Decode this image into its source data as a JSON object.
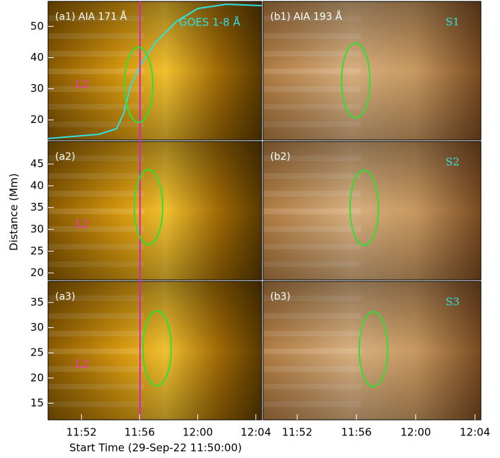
{
  "figure": {
    "y_label": "Distance (Mm)",
    "x_label": "Start Time (29-Sep-22 11:50:00)"
  },
  "chart_data": [
    {
      "type": "image",
      "title": "(a1) AIA 171 Å",
      "annotation": "GOES 1-8 Å",
      "region": "L2",
      "palette": "gold",
      "ylim": [
        13.6,
        58
      ],
      "yticks": [
        20,
        30,
        40,
        50
      ]
    },
    {
      "type": "image",
      "title": "(b1) AIA 193 Å",
      "region": "S1",
      "palette": "brown"
    },
    {
      "type": "image",
      "title": "(a2)",
      "region": "L2",
      "palette": "gold",
      "ylim": [
        18.4,
        50.2
      ],
      "yticks": [
        20,
        25,
        30,
        35,
        40,
        45
      ]
    },
    {
      "type": "image",
      "title": "(b2)",
      "region": "S2",
      "palette": "brown"
    },
    {
      "type": "image",
      "title": "(a3)",
      "region": "L2",
      "palette": "gold",
      "ylim": [
        11.7,
        39.2
      ],
      "yticks": [
        15,
        20,
        25,
        30,
        35
      ],
      "xlim": [
        -0.3,
        14.4
      ],
      "xticks": [
        {
          "value": 2,
          "label": "11:52"
        },
        {
          "value": 6,
          "label": "11:56"
        },
        {
          "value": 10,
          "label": "12:00"
        },
        {
          "value": 14,
          "label": "12:04"
        }
      ]
    },
    {
      "type": "image",
      "title": "(b3)",
      "region": "S3",
      "palette": "brown",
      "xlim": [
        -0.3,
        14.4
      ],
      "xticks": [
        {
          "value": 2,
          "label": "11:52"
        },
        {
          "value": 6,
          "label": "11:56"
        },
        {
          "value": 10,
          "label": "12:00"
        },
        {
          "value": 14,
          "label": "12:04"
        }
      ]
    }
  ]
}
